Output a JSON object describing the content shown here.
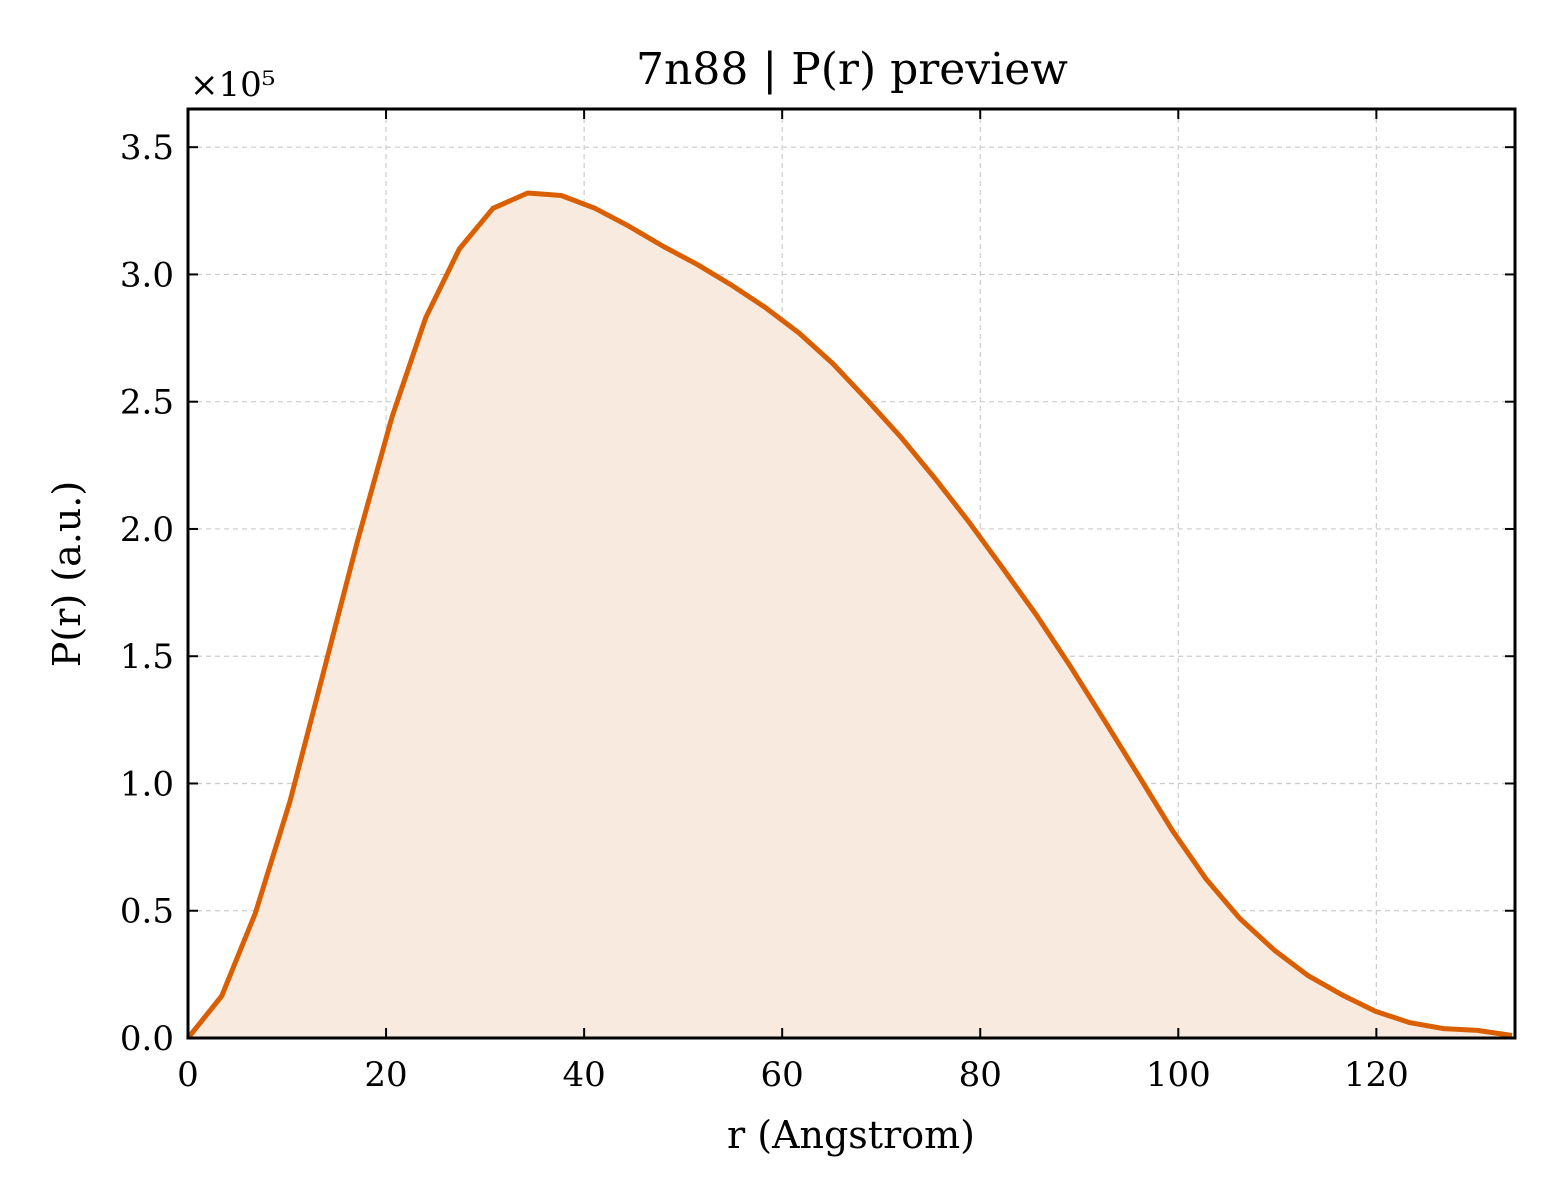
{
  "chart_data": {
    "type": "area",
    "title": "7n88 | P(r) preview",
    "xlabel": "r (Angstrom)",
    "ylabel": "P(r) (a.u.)",
    "y_offset_label": "×10⁵",
    "xlim": [
      0,
      134
    ],
    "ylim": [
      0,
      3.65
    ],
    "y_scale_factor": 100000,
    "xticks": [
      0,
      20,
      40,
      60,
      80,
      100,
      120
    ],
    "xtick_labels": [
      "0",
      "20",
      "40",
      "60",
      "80",
      "100",
      "120"
    ],
    "yticks": [
      0.0,
      0.5,
      1.0,
      1.5,
      2.0,
      2.5,
      3.0,
      3.5
    ],
    "ytick_labels": [
      "0.0",
      "0.5",
      "1.0",
      "1.5",
      "2.0",
      "2.5",
      "3.0",
      "3.5"
    ],
    "grid": true,
    "line_color": "#d95f02",
    "fill_color": "#f9eadf",
    "x": [
      0,
      3.4,
      6.8,
      10.3,
      13.7,
      17.1,
      20.6,
      24.0,
      27.4,
      30.8,
      34.3,
      37.7,
      41.1,
      44.5,
      48.0,
      51.4,
      54.8,
      58.3,
      61.7,
      65.1,
      68.5,
      72.0,
      75.4,
      78.8,
      82.2,
      85.7,
      89.1,
      92.5,
      96.0,
      99.4,
      102.8,
      106.2,
      109.7,
      113.1,
      116.5,
      119.9,
      123.4,
      126.8,
      130.2,
      133.7
    ],
    "y": [
      0.0,
      0.165,
      0.49,
      0.93,
      1.44,
      1.95,
      2.44,
      2.83,
      3.1,
      3.26,
      3.32,
      3.31,
      3.26,
      3.19,
      3.11,
      3.04,
      2.96,
      2.87,
      2.77,
      2.65,
      2.51,
      2.36,
      2.2,
      2.03,
      1.85,
      1.66,
      1.46,
      1.25,
      1.03,
      0.815,
      0.625,
      0.47,
      0.345,
      0.245,
      0.17,
      0.105,
      0.06,
      0.037,
      0.03,
      0.01
    ]
  }
}
